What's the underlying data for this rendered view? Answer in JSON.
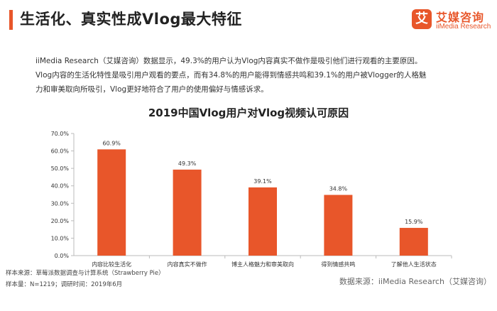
{
  "header": {
    "title": "生活化、真实性成Vlog最大特征",
    "logo_mark": "艾",
    "logo_cn": "艾媒咨询",
    "logo_en": "iiMedia Research"
  },
  "description": [
    "iiMedia Research（艾媒咨询）数据显示，49.3%的用户认为Vlog内容真实不做作是吸引他们进行观看的主要原因。",
    "Vlog内容的生活化特性是吸引用户观看的要点，而有34.8%的用户能得到情感共鸣和39.1%的用户被Vlogger的人格魅",
    "力和审美取向所吸引，Vlog更好地符合了用户的使用偏好与情感诉求。"
  ],
  "chart_data": {
    "type": "bar",
    "title": "2019中国Vlog用户对Vlog视频认可原因",
    "categories": [
      "内容比较生活化",
      "内容真实不做作",
      "博主人格魅力和审美取向",
      "得到情感共鸣",
      "了解他人生活状态"
    ],
    "values": [
      60.9,
      49.3,
      39.1,
      34.8,
      15.9
    ],
    "value_labels": [
      "60.9%",
      "49.3%",
      "39.1%",
      "34.8%",
      "15.9%"
    ],
    "ylim": [
      0,
      70
    ],
    "yticks": [
      "0.0%",
      "10.0%",
      "20.0%",
      "30.0%",
      "40.0%",
      "50.0%",
      "60.0%",
      "70.0%"
    ],
    "xlabel": "",
    "ylabel": "",
    "bar_color": "#e8562a",
    "grid": false,
    "legend": "none"
  },
  "footer": {
    "sample_source": "样本来源：草莓派数据调查与计算系统（Strawberry Pie）",
    "sample_size": "样本量：N=1219；调研时间：2019年6月",
    "data_source": "数据来源：iiMedia Research（艾媒咨询）"
  }
}
